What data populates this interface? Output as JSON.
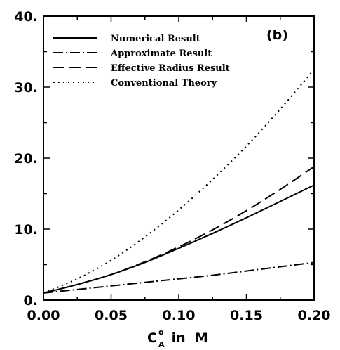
{
  "chart_data": {
    "type": "line",
    "panel_label": "(b)",
    "xlabel": {
      "base": "C",
      "superscript": "o",
      "subscript": "A",
      "suffix": " in  M"
    },
    "ylabel": "",
    "xlim": [
      0.0,
      0.2
    ],
    "ylim": [
      0.0,
      40.0
    ],
    "x_ticks": [
      "0.00",
      "0.05",
      "0.10",
      "0.15",
      "0.20"
    ],
    "y_ticks": [
      "0.",
      "10.",
      "20.",
      "30.",
      "40."
    ],
    "grid": false,
    "legend_position": "top-left",
    "x": [
      0.0,
      0.025,
      0.05,
      0.075,
      0.1,
      0.125,
      0.15,
      0.175,
      0.2
    ],
    "series": [
      {
        "name": "Numerical Result",
        "style": "solid",
        "values": [
          1.0,
          2.2,
          3.6,
          5.3,
          7.3,
          9.4,
          11.6,
          13.9,
          16.2
        ]
      },
      {
        "name": "Approximate Result",
        "style": "dashdot",
        "values": [
          1.0,
          1.5,
          2.0,
          2.5,
          3.0,
          3.5,
          4.1,
          4.7,
          5.3
        ]
      },
      {
        "name": "Effective Radius Result",
        "style": "dashed",
        "values": [
          1.0,
          2.2,
          3.6,
          5.4,
          7.5,
          9.9,
          12.6,
          15.6,
          18.8
        ]
      },
      {
        "name": "Conventional Theory",
        "style": "dotted",
        "values": [
          1.0,
          3.0,
          5.6,
          8.9,
          12.7,
          17.0,
          21.7,
          26.9,
          32.5
        ]
      }
    ]
  }
}
